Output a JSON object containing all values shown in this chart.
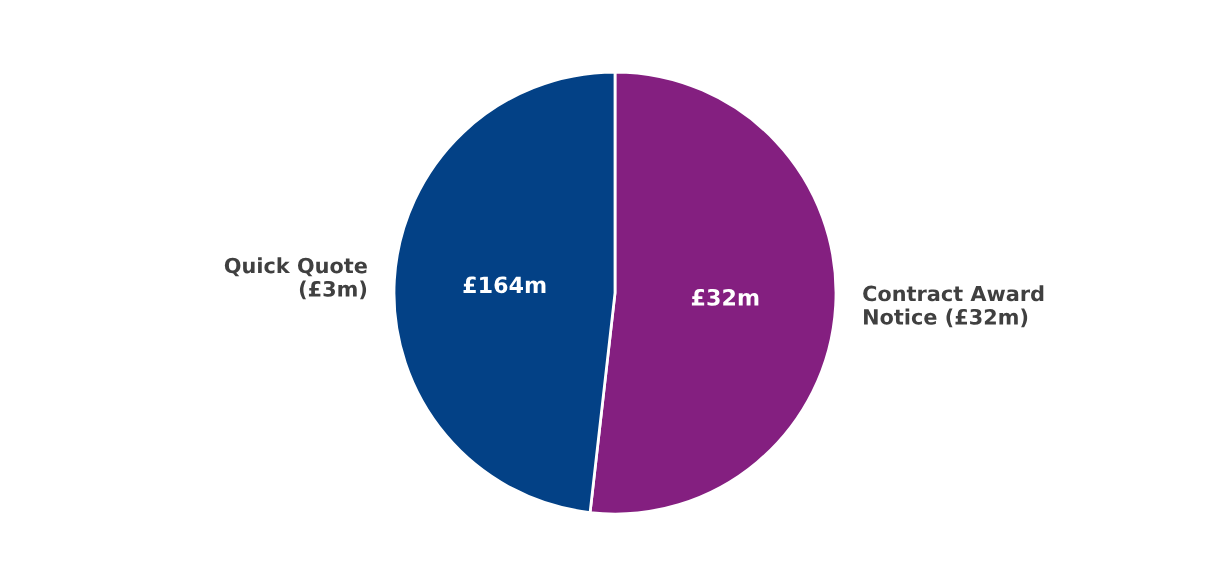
{
  "chart_data": {
    "type": "pie",
    "categories": [
      "Contract Award\nNotice (£32m)",
      "Quick Quote\n(£3m)"
    ],
    "values": [
      51.8,
      48.2
    ],
    "annotations": [
      "£32m",
      "£164m"
    ],
    "colors": [
      "#841f80",
      "#034186"
    ],
    "legend": false
  }
}
